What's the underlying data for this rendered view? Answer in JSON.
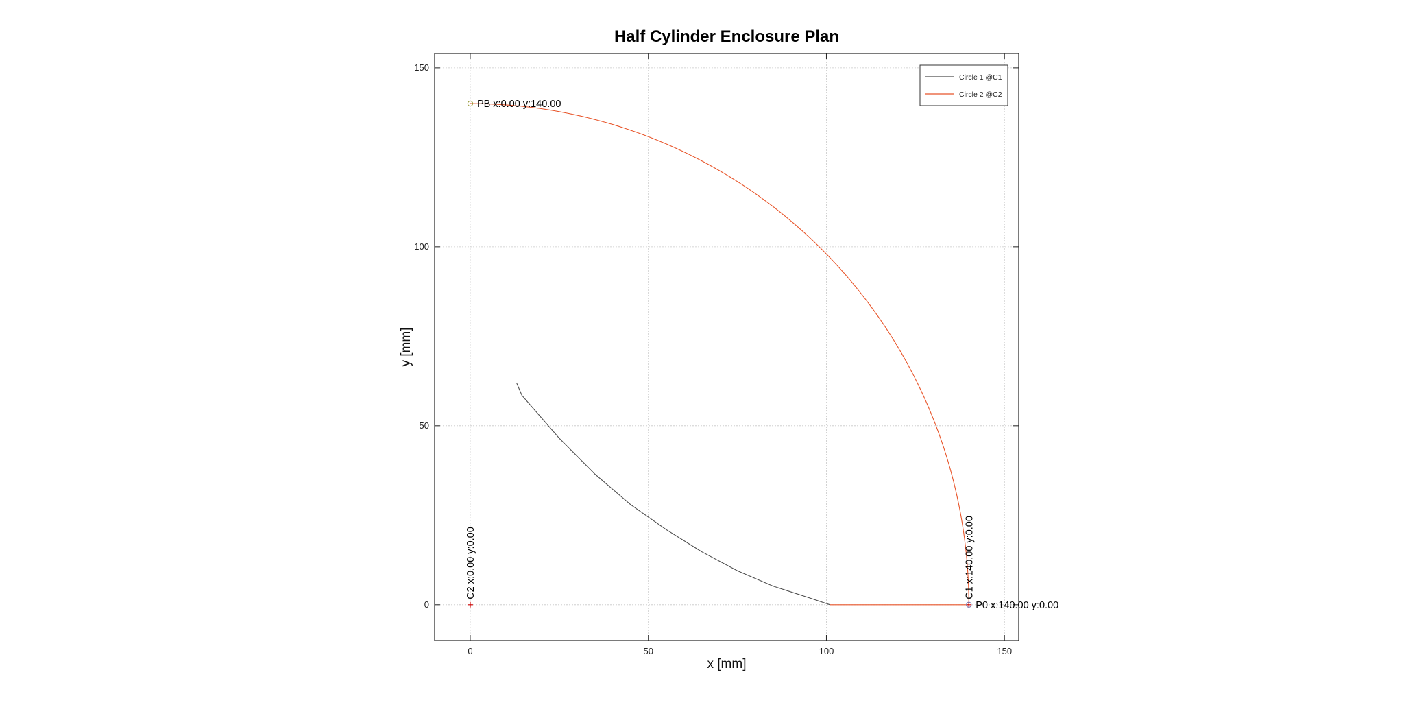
{
  "chart_data": {
    "type": "line",
    "title": "Half Cylinder Enclosure Plan",
    "xlabel": "x [mm]",
    "ylabel": "y [mm]",
    "xlim": [
      -10,
      154
    ],
    "ylim": [
      -10,
      154
    ],
    "xticks": [
      0,
      50,
      100,
      150
    ],
    "yticks": [
      0,
      50,
      100,
      150
    ],
    "grid": true,
    "legend_position": "top-right",
    "series": [
      {
        "name": "Circle 1 @C1",
        "color": "#4d4d4d",
        "center": [
          140,
          0
        ],
        "radius": 130,
        "arc_start_deg": 180,
        "arc_end_deg": 150,
        "points": [
          [
            13.0,
            62.0
          ],
          [
            14.5,
            58.5
          ],
          [
            18.0,
            54.5
          ],
          [
            25.0,
            46.5
          ],
          [
            35.0,
            36.5
          ],
          [
            45.0,
            28.0
          ],
          [
            55.0,
            21.0
          ],
          [
            65.0,
            14.8
          ],
          [
            75.0,
            9.5
          ],
          [
            85.0,
            5.2
          ],
          [
            95.0,
            2.0
          ],
          [
            101.0,
            0.0
          ]
        ],
        "segments": [
          [
            [
              101.0,
              0.0
            ],
            [
              140.0,
              0.0
            ]
          ]
        ]
      },
      {
        "name": "Circle 2 @C2",
        "color": "#e8552a",
        "center": [
          0,
          0
        ],
        "radius": 140,
        "arc_start_deg": 0,
        "arc_end_deg": 90,
        "points": []
      }
    ],
    "markers": [
      {
        "name": "C2",
        "x": 0,
        "y": 0,
        "shape": "plus",
        "color": "#cc0000"
      },
      {
        "name": "PB",
        "x": 0,
        "y": 140,
        "shape": "circle",
        "color": "#9a9a3a"
      },
      {
        "name": "C1",
        "x": 140,
        "y": 0,
        "shape": "plus",
        "color": "#cc0000"
      },
      {
        "name": "P0",
        "x": 140,
        "y": 0,
        "shape": "circle",
        "color": "#7a7ab0"
      }
    ],
    "annotations": [
      {
        "text": "C2 x:0.00 y:0.00",
        "x": 0,
        "y": 0,
        "rotation": -90
      },
      {
        "text": "PB x:0.00 y:140.00",
        "x": 0,
        "y": 140,
        "rotation": 0
      },
      {
        "text": "C1 x:140.00 y:0.00",
        "x": 140,
        "y": 0,
        "rotation": -90
      },
      {
        "text": "P0 x:140.00 y:0.00",
        "x": 140,
        "y": 0,
        "rotation": 0
      }
    ]
  }
}
